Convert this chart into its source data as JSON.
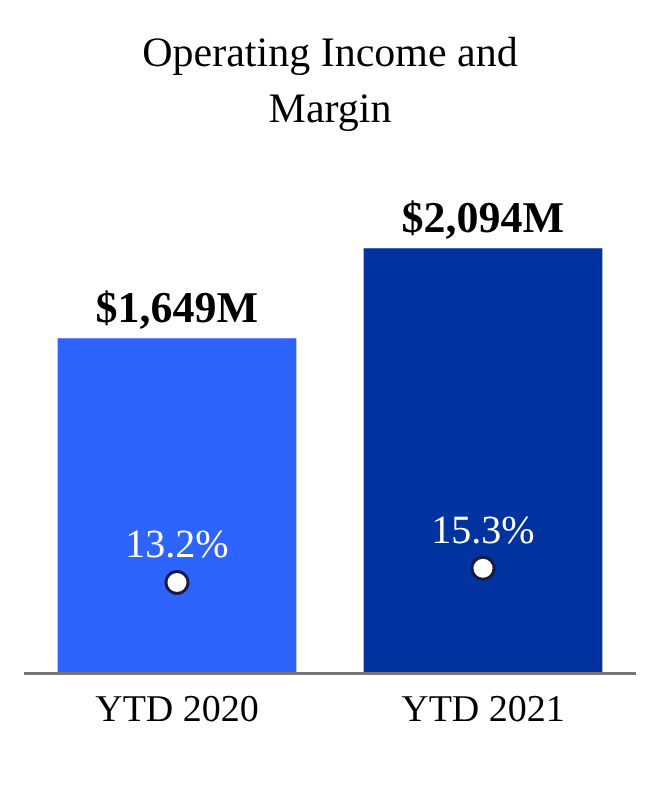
{
  "chart_data": {
    "type": "bar",
    "title": "Operating Income and Margin",
    "categories": [
      "YTD 2020",
      "YTD 2021"
    ],
    "series": [
      {
        "type": "bar",
        "colors": [
          "#2e64fe",
          "#00339f"
        ],
        "values": [
          1649,
          2094
        ],
        "value_labels": [
          "$1,649M",
          "$2,094M"
        ]
      },
      {
        "type": "scatter",
        "axis": "y2",
        "color": "#ffffff",
        "values": [
          13.2,
          15.3
        ],
        "value_labels": [
          "13.2%",
          "15.3%"
        ]
      }
    ],
    "marker": "circle",
    "grid": false,
    "tick_labels": "x"
  }
}
